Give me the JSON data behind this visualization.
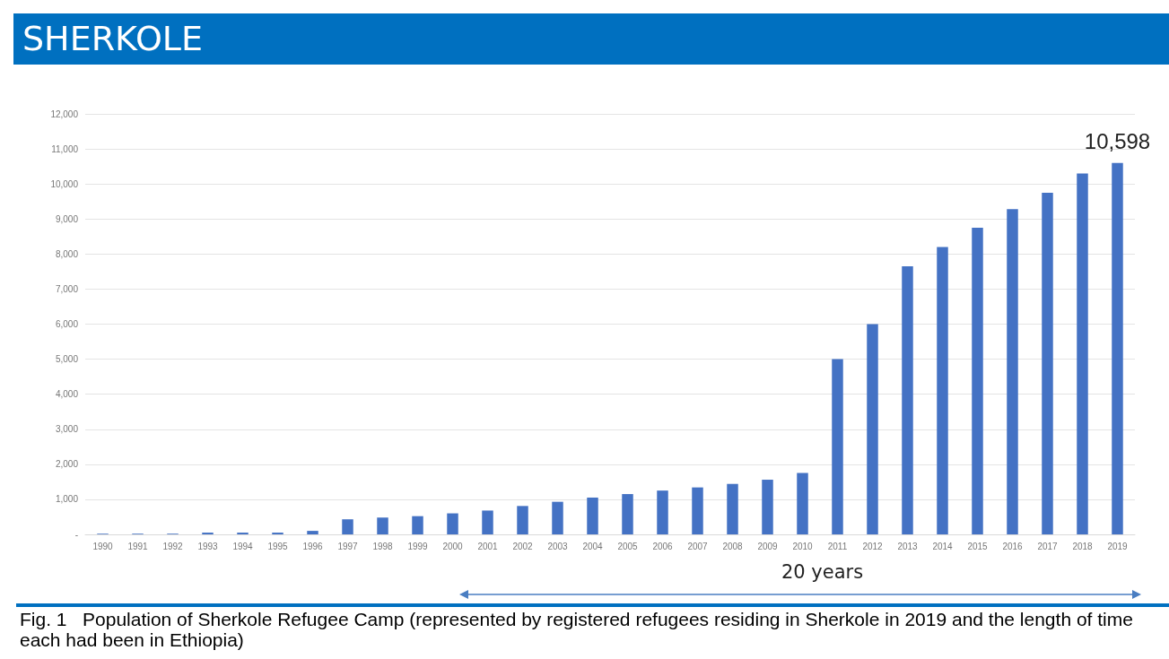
{
  "chart_data": {
    "type": "bar",
    "title": "SHERKOLE",
    "categories": [
      "1990",
      "1991",
      "1992",
      "1993",
      "1994",
      "1995",
      "1996",
      "1997",
      "1998",
      "1999",
      "2000",
      "2001",
      "2002",
      "2003",
      "2004",
      "2005",
      "2006",
      "2007",
      "2008",
      "2009",
      "2010",
      "2011",
      "2012",
      "2013",
      "2014",
      "2015",
      "2016",
      "2017",
      "2018",
      "2019"
    ],
    "values": [
      20,
      20,
      20,
      50,
      50,
      50,
      100,
      430,
      480,
      520,
      600,
      680,
      810,
      930,
      1050,
      1150,
      1250,
      1340,
      1440,
      1560,
      1750,
      5000,
      6000,
      7650,
      8200,
      8750,
      9280,
      9750,
      10300,
      10598
    ],
    "value_labels": [
      null,
      null,
      null,
      null,
      null,
      null,
      null,
      null,
      null,
      null,
      null,
      null,
      null,
      null,
      null,
      null,
      null,
      null,
      null,
      null,
      null,
      null,
      null,
      null,
      null,
      null,
      null,
      null,
      null,
      "10,598"
    ],
    "color": "#4472c4",
    "ylim": [
      0,
      12000
    ],
    "yticks": [
      {
        "value": 0,
        "label": "-"
      },
      {
        "value": 1000,
        "label": "1,000"
      },
      {
        "value": 2000,
        "label": "2,000"
      },
      {
        "value": 3000,
        "label": "3,000"
      },
      {
        "value": 4000,
        "label": "4,000"
      },
      {
        "value": 5000,
        "label": "5,000"
      },
      {
        "value": 6000,
        "label": "6,000"
      },
      {
        "value": 7000,
        "label": "7,000"
      },
      {
        "value": 8000,
        "label": "8,000"
      },
      {
        "value": 9000,
        "label": "9,000"
      },
      {
        "value": 10000,
        "label": "10,000"
      },
      {
        "value": 11000,
        "label": "11,000"
      },
      {
        "value": 12000,
        "label": "12,000"
      }
    ],
    "grid": "y",
    "annotations": [
      "20 years",
      "Fig. 1   Population of Sherkole Refugee Camp (represented by registered refugees residing in Sherkole in 2019 and the length of time each had been in Ethiopia)"
    ]
  }
}
